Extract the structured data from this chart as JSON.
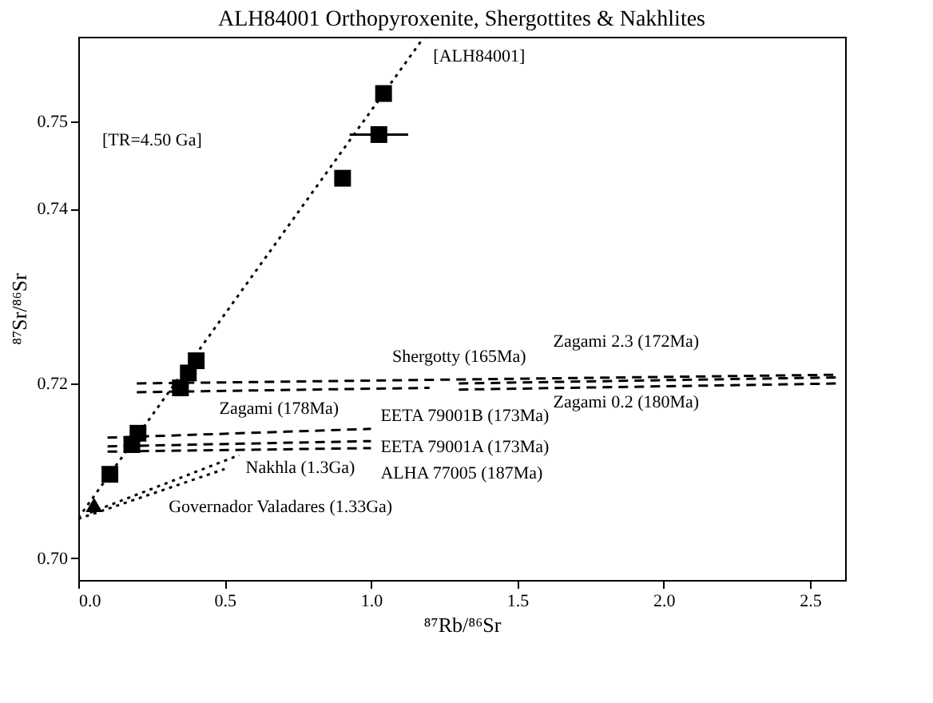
{
  "chart_data": {
    "type": "scatter",
    "title": "ALH84001 Orthopyroxenite, Shergottites & Nakhlites",
    "xlabel": "⁸⁷Rb/⁸⁶Sr",
    "ylabel": "⁸⁷Sr/⁸⁶Sr",
    "xlim": [
      0,
      2.62
    ],
    "ylim": [
      0.6975,
      0.7597
    ],
    "xticks": [
      {
        "value": 0,
        "label": "0.0"
      },
      {
        "value": 0.5,
        "label": "0.5"
      },
      {
        "value": 1,
        "label": "1.0"
      },
      {
        "value": 1.5,
        "label": "1.5"
      },
      {
        "value": 2,
        "label": "2.0"
      },
      {
        "value": 2.5,
        "label": "2.5"
      }
    ],
    "yticks": [
      {
        "value": 0.7,
        "label": "0.70"
      },
      {
        "value": 0.72,
        "label": "0.72"
      },
      {
        "value": 0.74,
        "label": "0.74"
      },
      {
        "value": 0.75,
        "label": "0.75"
      }
    ],
    "grid": false,
    "legend": false,
    "series": [
      {
        "type": "line",
        "name": "[ALH84001]",
        "color": "#000000",
        "line_style": "dotted",
        "x": [
          0,
          1.18
        ],
        "values": [
          0.7046,
          0.7596
        ]
      },
      {
        "type": "line",
        "name": "Shergotty (165Ma)",
        "color": "#000000",
        "line_style": "dashed",
        "x": [
          0.2,
          2.6
        ],
        "values": [
          0.72,
          0.721
        ]
      },
      {
        "type": "line",
        "name": "Zagami (178Ma)",
        "color": "#000000",
        "line_style": "dashed",
        "x": [
          0.2,
          1.2
        ],
        "values": [
          0.719,
          0.7195
        ]
      },
      {
        "type": "line",
        "name": "Zagami 2.3 (172Ma)",
        "color": "#000000",
        "line_style": "dashed",
        "x": [
          1.3,
          2.6
        ],
        "values": [
          0.72,
          0.7207
        ]
      },
      {
        "type": "line",
        "name": "Zagami 0.2 (180Ma)",
        "color": "#000000",
        "line_style": "dashed",
        "x": [
          1.3,
          2.6
        ],
        "values": [
          0.7193,
          0.72
        ]
      },
      {
        "type": "line",
        "name": "EETA 79001B (173Ma)",
        "color": "#000000",
        "line_style": "dashed",
        "x": [
          0.1,
          1.0
        ],
        "values": [
          0.7138,
          0.7148
        ]
      },
      {
        "type": "line",
        "name": "EETA 79001A (173Ma)",
        "color": "#000000",
        "line_style": "dashed",
        "x": [
          0.1,
          1.0
        ],
        "values": [
          0.7128,
          0.7134
        ]
      },
      {
        "type": "line",
        "name": "ALHA 77005 (187Ma)",
        "color": "#000000",
        "line_style": "dashed",
        "x": [
          0.1,
          1.0
        ],
        "values": [
          0.7122,
          0.7126
        ]
      },
      {
        "type": "line",
        "name": "Nakhla (1.3Ga)",
        "color": "#000000",
        "line_style": "dotted",
        "x": [
          0.04,
          0.55
        ],
        "values": [
          0.7052,
          0.7118
        ]
      },
      {
        "type": "line",
        "name": "Governador Valadares (1.33Ga)",
        "color": "#000000",
        "line_style": "dotted",
        "x": [
          0.0,
          0.5
        ],
        "values": [
          0.7045,
          0.7102
        ]
      },
      {
        "type": "scatter",
        "marker": "square",
        "color": "#000000",
        "x": [
          1.043,
          1.027,
          0.903,
          0.403,
          0.376,
          0.349,
          0.204,
          0.183,
          0.108
        ],
        "values": [
          0.7532,
          0.7485,
          0.7435,
          0.7226,
          0.7212,
          0.7195,
          0.7143,
          0.713,
          0.7096
        ],
        "xerrors": [
          null,
          0.1,
          null,
          null,
          null,
          null,
          null,
          null,
          null
        ]
      },
      {
        "type": "scatter",
        "marker": "triangle",
        "color": "#000000",
        "x": [
          0.054
        ],
        "values": [
          0.7061
        ]
      }
    ],
    "annotations": [
      "[TR=4.50 Ga]"
    ]
  }
}
